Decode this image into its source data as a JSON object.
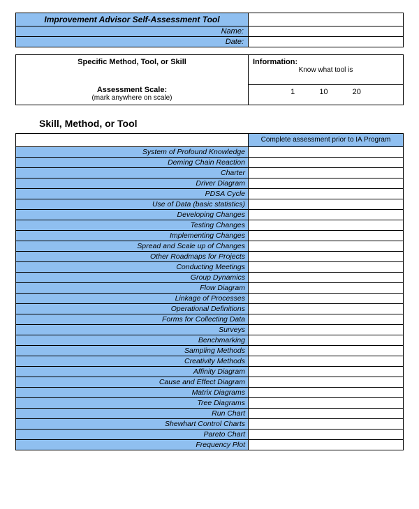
{
  "colors": {
    "blue": "#8fbff0",
    "border": "#000000",
    "bg": "#ffffff"
  },
  "header": {
    "title": "Improvement Advisor Self-Assessment Tool",
    "name_label": "Name:",
    "date_label": "Date:"
  },
  "spec": {
    "left_label": "Specific Method, Tool, or Skill",
    "right_label": "Information:",
    "right_sub": "Know what tool is",
    "scale_label": "Assessment Scale:",
    "scale_sub": "(mark anywhere on scale)",
    "scale_vals": [
      "1",
      "10",
      "20"
    ]
  },
  "section_title": "Skill, Method, or Tool",
  "skills_header": "Complete assessment prior to IA Program",
  "skills": [
    "System of Profound Knowledge",
    "Deming Chain Reaction",
    "Charter",
    "Driver Diagram",
    "PDSA Cycle",
    "Use of Data (basic statistics)",
    "Developing Changes",
    "Testing Changes",
    "Implementing Changes",
    "Spread and Scale up of Changes",
    "Other Roadmaps for Projects",
    "Conducting Meetings",
    "Group Dynamics",
    "Flow Diagram",
    "Linkage of Processes",
    "Operational Definitions",
    "Forms for Collecting Data",
    "Surveys",
    "Benchmarking",
    "Sampling Methods",
    "Creativity Methods",
    "Affinity Diagram",
    "Cause and Effect Diagram",
    "Matrix Diagrams",
    "Tree Diagrams",
    "Run Chart",
    "Shewhart Control Charts",
    "Pareto Chart",
    "Frequency Plot"
  ]
}
